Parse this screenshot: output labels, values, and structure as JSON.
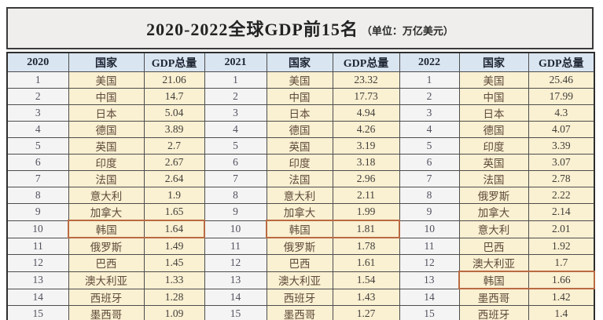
{
  "chart_data": {
    "type": "table",
    "title": "2020-2022全球GDP前15名",
    "unit": "（单位：万亿美元）",
    "columns": [
      "2020",
      "国家",
      "GDP总量",
      "2021",
      "国家",
      "GDP总量",
      "2022",
      "国家",
      "GDP总量"
    ],
    "years": [
      {
        "year": "2020",
        "highlight_rank": 10,
        "rows": [
          {
            "rank": "1",
            "country": "美国",
            "gdp": "21.06"
          },
          {
            "rank": "2",
            "country": "中国",
            "gdp": "14.7"
          },
          {
            "rank": "3",
            "country": "日本",
            "gdp": "5.04"
          },
          {
            "rank": "4",
            "country": "德国",
            "gdp": "3.89"
          },
          {
            "rank": "5",
            "country": "英国",
            "gdp": "2.7"
          },
          {
            "rank": "6",
            "country": "印度",
            "gdp": "2.67"
          },
          {
            "rank": "7",
            "country": "法国",
            "gdp": "2.64"
          },
          {
            "rank": "8",
            "country": "意大利",
            "gdp": "1.9"
          },
          {
            "rank": "9",
            "country": "加拿大",
            "gdp": "1.65"
          },
          {
            "rank": "10",
            "country": "韩国",
            "gdp": "1.64"
          },
          {
            "rank": "11",
            "country": "俄罗斯",
            "gdp": "1.49"
          },
          {
            "rank": "12",
            "country": "巴西",
            "gdp": "1.45"
          },
          {
            "rank": "13",
            "country": "澳大利亚",
            "gdp": "1.33"
          },
          {
            "rank": "14",
            "country": "西班牙",
            "gdp": "1.28"
          },
          {
            "rank": "15",
            "country": "墨西哥",
            "gdp": "1.09"
          }
        ]
      },
      {
        "year": "2021",
        "highlight_rank": 10,
        "rows": [
          {
            "rank": "1",
            "country": "美国",
            "gdp": "23.32"
          },
          {
            "rank": "2",
            "country": "中国",
            "gdp": "17.73"
          },
          {
            "rank": "3",
            "country": "日本",
            "gdp": "4.94"
          },
          {
            "rank": "4",
            "country": "德国",
            "gdp": "4.26"
          },
          {
            "rank": "5",
            "country": "英国",
            "gdp": "3.19"
          },
          {
            "rank": "6",
            "country": "印度",
            "gdp": "3.18"
          },
          {
            "rank": "7",
            "country": "法国",
            "gdp": "2.96"
          },
          {
            "rank": "8",
            "country": "意大利",
            "gdp": "2.11"
          },
          {
            "rank": "9",
            "country": "加拿大",
            "gdp": "1.99"
          },
          {
            "rank": "10",
            "country": "韩国",
            "gdp": "1.81"
          },
          {
            "rank": "11",
            "country": "俄罗斯",
            "gdp": "1.78"
          },
          {
            "rank": "12",
            "country": "巴西",
            "gdp": "1.61"
          },
          {
            "rank": "13",
            "country": "澳大利亚",
            "gdp": "1.54"
          },
          {
            "rank": "14",
            "country": "西班牙",
            "gdp": "1.43"
          },
          {
            "rank": "15",
            "country": "墨西哥",
            "gdp": "1.27"
          }
        ]
      },
      {
        "year": "2022",
        "highlight_rank": 13,
        "rows": [
          {
            "rank": "1",
            "country": "美国",
            "gdp": "25.46"
          },
          {
            "rank": "2",
            "country": "中国",
            "gdp": "17.99"
          },
          {
            "rank": "3",
            "country": "日本",
            "gdp": "4.3"
          },
          {
            "rank": "4",
            "country": "德国",
            "gdp": "4.07"
          },
          {
            "rank": "5",
            "country": "印度",
            "gdp": "3.39"
          },
          {
            "rank": "6",
            "country": "英国",
            "gdp": "3.07"
          },
          {
            "rank": "7",
            "country": "法国",
            "gdp": "2.78"
          },
          {
            "rank": "8",
            "country": "俄罗斯",
            "gdp": "2.22"
          },
          {
            "rank": "9",
            "country": "加拿大",
            "gdp": "2.14"
          },
          {
            "rank": "10",
            "country": "意大利",
            "gdp": "2.01"
          },
          {
            "rank": "11",
            "country": "巴西",
            "gdp": "1.92"
          },
          {
            "rank": "12",
            "country": "澳大利亚",
            "gdp": "1.7"
          },
          {
            "rank": "13",
            "country": "韩国",
            "gdp": "1.66"
          },
          {
            "rank": "14",
            "country": "墨西哥",
            "gdp": "1.42"
          },
          {
            "rank": "15",
            "country": "西班牙",
            "gdp": "1.4"
          }
        ]
      }
    ]
  },
  "colors": {
    "header_bg": "#d9e5f1",
    "cell_cream_bg": "#faf0d2",
    "rank_bg": "#f4f4f4",
    "title_bg": "#efeeec",
    "highlight_border": "#b96a42"
  }
}
